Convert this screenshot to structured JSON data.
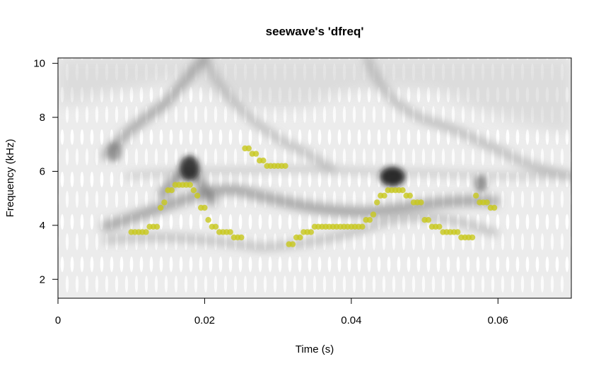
{
  "chart_data": {
    "type": "scatter",
    "title": "seewave's 'dfreq'",
    "xlabel": "Time (s)",
    "ylabel": "Frequency (kHz)",
    "xlim": [
      0,
      0.07
    ],
    "ylim": [
      1.3,
      10.2
    ],
    "x_ticks": [
      0,
      0.02,
      0.04,
      0.06
    ],
    "x_tick_labels": [
      "0",
      "0.02",
      "0.04",
      "0.06"
    ],
    "y_ticks": [
      2,
      4,
      6,
      8,
      10
    ],
    "y_tick_labels": [
      "2",
      "4",
      "6",
      "8",
      "10"
    ],
    "grid": false,
    "legend": "none",
    "background": "grayscale spectrogram",
    "point_color": "#c8c81e",
    "series": [
      {
        "points": [
          [
            0.01,
            3.75
          ],
          [
            0.0105,
            3.75
          ],
          [
            0.011,
            3.75
          ],
          [
            0.0115,
            3.75
          ],
          [
            0.012,
            3.75
          ],
          [
            0.0125,
            3.95
          ],
          [
            0.013,
            3.95
          ],
          [
            0.0135,
            3.95
          ],
          [
            0.014,
            4.65
          ],
          [
            0.0145,
            4.85
          ],
          [
            0.015,
            5.3
          ],
          [
            0.0155,
            5.3
          ],
          [
            0.016,
            5.5
          ],
          [
            0.0165,
            5.5
          ],
          [
            0.017,
            5.5
          ],
          [
            0.0175,
            5.5
          ],
          [
            0.018,
            5.5
          ],
          [
            0.0185,
            5.3
          ],
          [
            0.019,
            5.1
          ],
          [
            0.0195,
            4.65
          ],
          [
            0.02,
            4.65
          ],
          [
            0.0205,
            4.2
          ],
          [
            0.021,
            3.95
          ],
          [
            0.0215,
            3.95
          ],
          [
            0.022,
            3.75
          ],
          [
            0.0225,
            3.75
          ],
          [
            0.023,
            3.75
          ],
          [
            0.0235,
            3.75
          ],
          [
            0.024,
            3.55
          ],
          [
            0.0245,
            3.55
          ],
          [
            0.025,
            3.55
          ],
          [
            0.0255,
            6.85
          ],
          [
            0.026,
            6.85
          ],
          [
            0.0265,
            6.65
          ],
          [
            0.027,
            6.65
          ],
          [
            0.0275,
            6.4
          ],
          [
            0.028,
            6.4
          ],
          [
            0.0285,
            6.2
          ],
          [
            0.029,
            6.2
          ],
          [
            0.0295,
            6.2
          ],
          [
            0.03,
            6.2
          ],
          [
            0.0305,
            6.2
          ],
          [
            0.031,
            6.2
          ],
          [
            0.0315,
            3.3
          ],
          [
            0.032,
            3.3
          ],
          [
            0.0325,
            3.55
          ],
          [
            0.033,
            3.55
          ],
          [
            0.0335,
            3.75
          ],
          [
            0.034,
            3.75
          ],
          [
            0.0345,
            3.75
          ],
          [
            0.035,
            3.95
          ],
          [
            0.0355,
            3.95
          ],
          [
            0.036,
            3.95
          ],
          [
            0.0365,
            3.95
          ],
          [
            0.037,
            3.95
          ],
          [
            0.0375,
            3.95
          ],
          [
            0.038,
            3.95
          ],
          [
            0.0385,
            3.95
          ],
          [
            0.039,
            3.95
          ],
          [
            0.0395,
            3.95
          ],
          [
            0.04,
            3.95
          ],
          [
            0.0405,
            3.95
          ],
          [
            0.041,
            3.95
          ],
          [
            0.0415,
            3.95
          ],
          [
            0.042,
            4.2
          ],
          [
            0.0425,
            4.2
          ],
          [
            0.043,
            4.4
          ],
          [
            0.0435,
            4.85
          ],
          [
            0.044,
            5.1
          ],
          [
            0.0445,
            5.1
          ],
          [
            0.045,
            5.3
          ],
          [
            0.0455,
            5.3
          ],
          [
            0.046,
            5.3
          ],
          [
            0.0465,
            5.3
          ],
          [
            0.047,
            5.3
          ],
          [
            0.0475,
            5.1
          ],
          [
            0.048,
            5.1
          ],
          [
            0.0485,
            4.85
          ],
          [
            0.049,
            4.85
          ],
          [
            0.0495,
            4.85
          ],
          [
            0.05,
            4.2
          ],
          [
            0.0505,
            4.2
          ],
          [
            0.051,
            3.95
          ],
          [
            0.0515,
            3.95
          ],
          [
            0.052,
            3.95
          ],
          [
            0.0525,
            3.75
          ],
          [
            0.053,
            3.75
          ],
          [
            0.0535,
            3.75
          ],
          [
            0.054,
            3.75
          ],
          [
            0.0545,
            3.75
          ],
          [
            0.055,
            3.55
          ],
          [
            0.0555,
            3.55
          ],
          [
            0.056,
            3.55
          ],
          [
            0.0565,
            3.55
          ],
          [
            0.057,
            5.1
          ],
          [
            0.0575,
            4.85
          ],
          [
            0.058,
            4.85
          ],
          [
            0.0585,
            4.85
          ],
          [
            0.059,
            4.65
          ],
          [
            0.0595,
            4.65
          ]
        ]
      }
    ]
  }
}
